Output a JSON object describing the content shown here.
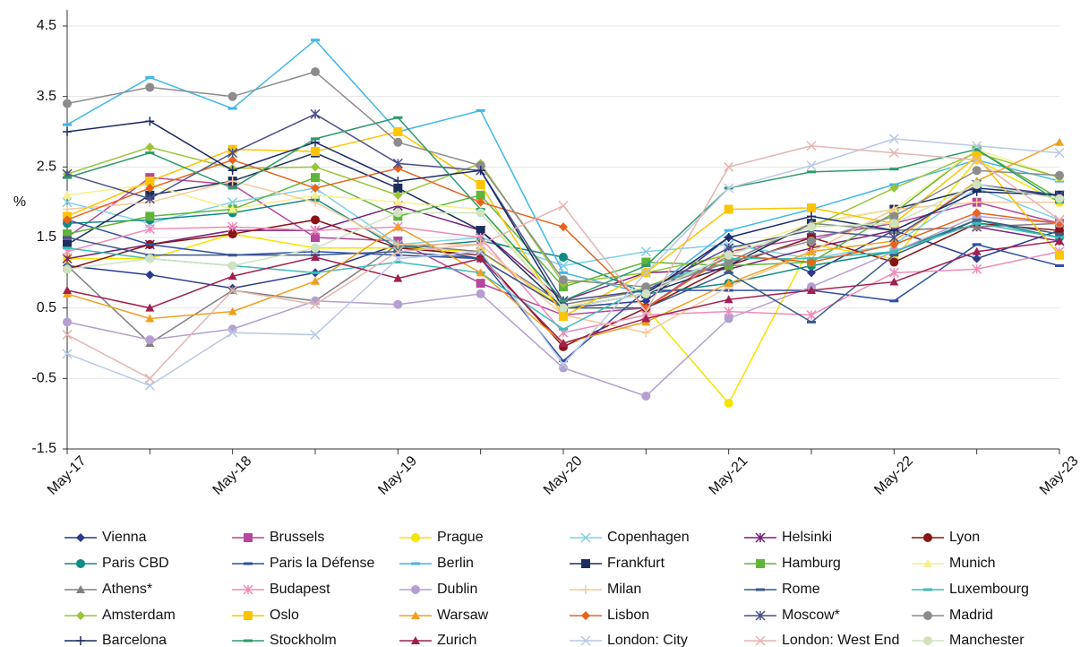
{
  "chart_data": {
    "type": "line",
    "y_label": "%",
    "categories": [
      "May-17",
      null,
      "May-18",
      null,
      "May-19",
      null,
      "May-20",
      null,
      "May-21",
      null,
      "May-22",
      null,
      "May-23"
    ],
    "ylim": [
      -1.5,
      4.5
    ],
    "yticks": [
      -1.5,
      -0.5,
      0.5,
      1.5,
      2.5,
      3.5,
      4.5
    ],
    "grid": true,
    "series": [
      {
        "name": "Vienna",
        "color": "#2b3a8c",
        "marker": "diamond",
        "values": [
          1.1,
          0.97,
          0.78,
          1.0,
          1.4,
          1.2,
          0.5,
          0.6,
          1.5,
          1.0,
          1.6,
          1.2,
          1.6
        ]
      },
      {
        "name": "Brussels",
        "color": "#b7479e",
        "marker": "square",
        "values": [
          1.5,
          2.35,
          2.25,
          1.5,
          1.45,
          0.85,
          0.4,
          0.5,
          1.3,
          1.5,
          1.7,
          2.0,
          1.7
        ]
      },
      {
        "name": "Prague",
        "color": "#f5e400",
        "marker": "circle",
        "values": [
          1.2,
          1.2,
          1.55,
          1.35,
          1.35,
          1.3,
          0.5,
          0.5,
          -0.85,
          1.4,
          1.2,
          2.6,
          2.0
        ]
      },
      {
        "name": "Copenhagen",
        "color": "#7fd0e6",
        "marker": "x",
        "values": [
          2.0,
          1.7,
          2.0,
          2.2,
          1.4,
          1.5,
          1.1,
          1.3,
          1.4,
          1.2,
          1.4,
          2.2,
          1.75
        ]
      },
      {
        "name": "Helsinki",
        "color": "#7b1f7a",
        "marker": "star",
        "values": [
          1.2,
          1.4,
          1.6,
          1.6,
          1.95,
          1.6,
          0.6,
          1.0,
          1.05,
          1.35,
          1.6,
          1.65,
          1.45
        ]
      },
      {
        "name": "Lyon",
        "color": "#8a1414",
        "marker": "circle",
        "values": [
          1.05,
          1.4,
          1.55,
          1.75,
          1.35,
          1.25,
          -0.05,
          0.5,
          1.1,
          1.5,
          1.15,
          1.7,
          1.6
        ]
      },
      {
        "name": "Paris CBD",
        "color": "#0f8a84",
        "marker": "circle",
        "values": [
          1.7,
          1.75,
          1.85,
          2.05,
          1.35,
          1.45,
          1.22,
          0.7,
          0.85,
          1.1,
          1.3,
          1.75,
          1.5
        ]
      },
      {
        "name": "Paris la Défense",
        "color": "#2e4fa3",
        "marker": "dash",
        "values": [
          1.75,
          1.4,
          1.25,
          1.3,
          1.25,
          1.2,
          -0.25,
          0.75,
          0.75,
          0.75,
          0.6,
          1.4,
          1.1
        ]
      },
      {
        "name": "Berlin",
        "color": "#3fb8e8",
        "marker": "dash",
        "values": [
          3.1,
          3.77,
          3.33,
          4.3,
          3.0,
          3.3,
          1.0,
          0.7,
          1.6,
          1.9,
          2.25,
          2.6,
          2.3
        ]
      },
      {
        "name": "Frankfurt",
        "color": "#1b2e5e",
        "marker": "square",
        "values": [
          1.4,
          2.1,
          2.3,
          2.7,
          2.2,
          1.6,
          0.5,
          0.7,
          1.1,
          1.7,
          1.9,
          2.2,
          2.1
        ]
      },
      {
        "name": "Hamburg",
        "color": "#5fb53a",
        "marker": "square",
        "values": [
          1.55,
          1.8,
          1.9,
          2.35,
          1.8,
          2.1,
          0.8,
          1.15,
          1.1,
          1.15,
          1.85,
          2.75,
          2.05
        ]
      },
      {
        "name": "Munich",
        "color": "#f6ef8e",
        "marker": "triangle",
        "values": [
          2.1,
          2.25,
          1.9,
          2.1,
          2.0,
          1.9,
          0.5,
          0.8,
          1.3,
          1.7,
          1.9,
          2.75,
          2.35
        ]
      },
      {
        "name": "Athens*",
        "color": "#808080",
        "marker": "triangle",
        "values": [
          1.1,
          0.0,
          0.75,
          0.6,
          1.4,
          1.3,
          0.55,
          0.75,
          1.15,
          1.7,
          1.6,
          1.65,
          1.7
        ]
      },
      {
        "name": "Budapest",
        "color": "#f08ab8",
        "marker": "star",
        "values": [
          1.3,
          1.62,
          1.65,
          1.6,
          1.65,
          1.5,
          0.15,
          0.4,
          0.45,
          0.4,
          1.0,
          1.05,
          1.3
        ]
      },
      {
        "name": "Dublin",
        "color": "#b49fd0",
        "marker": "circle",
        "values": [
          0.3,
          0.05,
          0.2,
          0.6,
          0.55,
          0.7,
          -0.35,
          -0.75,
          0.35,
          0.8,
          1.3,
          1.8,
          1.7
        ]
      },
      {
        "name": "Milan",
        "color": "#f7c89a",
        "marker": "plus",
        "values": [
          1.9,
          2.0,
          2.3,
          2.0,
          1.4,
          1.4,
          0.4,
          0.15,
          0.8,
          1.3,
          1.9,
          2.0,
          2.0
        ]
      },
      {
        "name": "Rome",
        "color": "#3c5a8a",
        "marker": "dash",
        "values": [
          1.5,
          1.25,
          1.25,
          1.25,
          1.3,
          1.2,
          0.5,
          0.5,
          1.0,
          0.3,
          1.25,
          1.75,
          1.55
        ]
      },
      {
        "name": "Luxembourg",
        "color": "#3bbdb8",
        "marker": "dash",
        "values": [
          1.35,
          1.2,
          1.1,
          1.0,
          1.15,
          1.0,
          0.2,
          0.8,
          1.2,
          1.2,
          1.3,
          1.7,
          1.5
        ]
      },
      {
        "name": "Amsterdam",
        "color": "#99c43a",
        "marker": "diamond",
        "values": [
          2.4,
          2.78,
          2.48,
          2.5,
          2.1,
          2.55,
          0.85,
          1.0,
          1.25,
          1.65,
          2.2,
          2.7,
          2.35
        ]
      },
      {
        "name": "Oslo",
        "color": "#fcc500",
        "marker": "square",
        "values": [
          1.8,
          2.3,
          2.75,
          2.72,
          3.0,
          2.25,
          0.38,
          1.0,
          1.9,
          1.92,
          1.7,
          2.65,
          1.25
        ]
      },
      {
        "name": "Warsaw",
        "color": "#f0a020",
        "marker": "triangle",
        "values": [
          0.7,
          0.35,
          0.45,
          0.88,
          1.65,
          1.0,
          0.0,
          0.3,
          0.85,
          1.3,
          1.45,
          2.3,
          2.85
        ]
      },
      {
        "name": "Lisbon",
        "color": "#e8641e",
        "marker": "diamond",
        "values": [
          1.75,
          2.2,
          2.6,
          2.2,
          2.48,
          2.0,
          1.65,
          0.5,
          1.25,
          1.15,
          1.4,
          1.85,
          1.7
        ]
      },
      {
        "name": "Moscow*",
        "color": "#4a4f8a",
        "marker": "star",
        "values": [
          2.4,
          2.05,
          2.7,
          3.25,
          2.55,
          2.45,
          0.6,
          0.75,
          1.35,
          1.6,
          1.5,
          2.25,
          2.1
        ]
      },
      {
        "name": "Madrid",
        "color": "#8c8c8c",
        "marker": "circle",
        "values": [
          3.4,
          3.63,
          3.5,
          3.85,
          2.85,
          2.52,
          0.9,
          0.8,
          1.15,
          1.45,
          1.8,
          2.45,
          2.38
        ]
      },
      {
        "name": "Barcelona",
        "color": "#1c2a66",
        "marker": "plus",
        "values": [
          3.0,
          3.15,
          2.45,
          2.85,
          2.3,
          2.45,
          0.5,
          0.7,
          1.5,
          1.8,
          1.6,
          2.15,
          2.1
        ]
      },
      {
        "name": "Stockholm",
        "color": "#2e9a6a",
        "marker": "dash",
        "values": [
          2.35,
          2.7,
          2.2,
          2.9,
          3.2,
          1.9,
          0.6,
          1.1,
          2.2,
          2.43,
          2.47,
          2.75,
          2.0
        ]
      },
      {
        "name": "Zurich",
        "color": "#a02050",
        "marker": "triangle",
        "values": [
          0.75,
          0.5,
          0.95,
          1.22,
          0.92,
          1.2,
          0.0,
          0.35,
          0.62,
          0.75,
          0.87,
          1.3,
          1.45
        ]
      },
      {
        "name": "London: City",
        "color": "#b8c8e6",
        "marker": "x",
        "values": [
          -0.15,
          -0.6,
          0.15,
          0.12,
          1.2,
          1.3,
          -0.3,
          1.0,
          2.2,
          2.52,
          2.9,
          2.8,
          2.7
        ]
      },
      {
        "name": "London: West End",
        "color": "#e6b4b0",
        "marker": "x",
        "values": [
          0.12,
          -0.5,
          0.75,
          0.55,
          1.3,
          1.4,
          1.95,
          0.45,
          2.5,
          2.8,
          2.7,
          2.6,
          1.75
        ]
      },
      {
        "name": "Manchester",
        "color": "#cfe3c0",
        "marker": "circle",
        "values": [
          1.05,
          1.2,
          1.1,
          1.35,
          1.85,
          1.85,
          0.5,
          0.7,
          1.25,
          1.65,
          1.7,
          2.25,
          2.05
        ]
      }
    ]
  }
}
